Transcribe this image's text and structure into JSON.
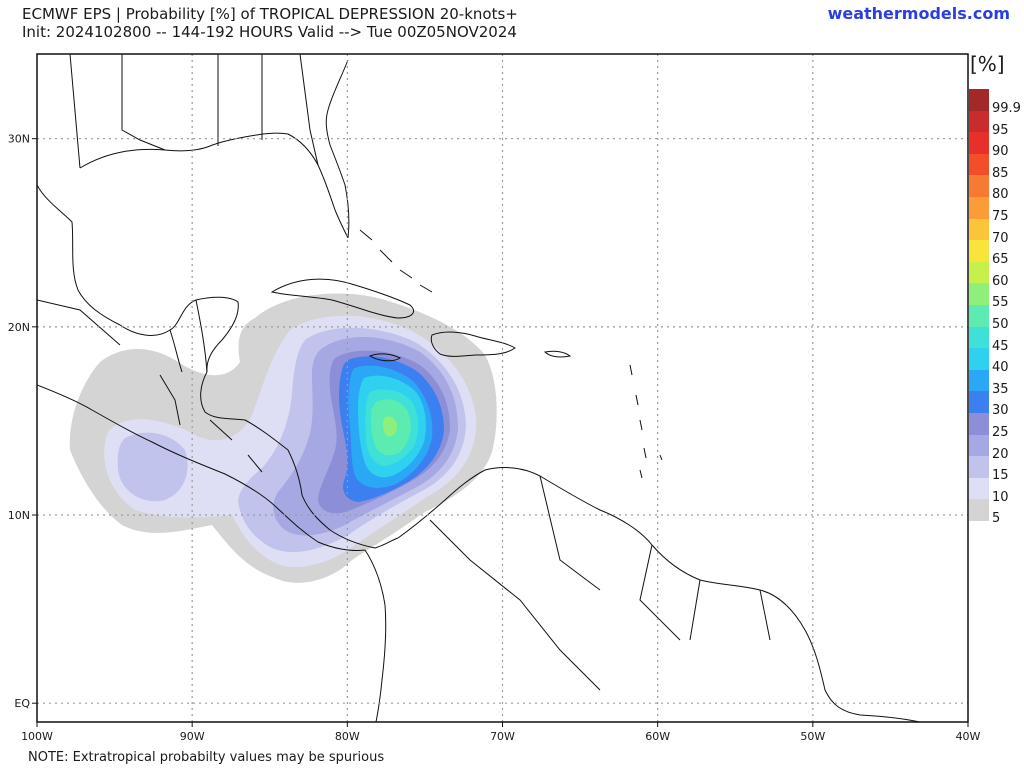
{
  "header": {
    "title": "ECMWF EPS | Probability [%] of TROPICAL DEPRESSION 20-knots+",
    "subtitle": "Init: 2024102800 -- 144-192 HOURS Valid --> Tue 00Z05NOV2024",
    "site": "weathermodels.com"
  },
  "footer": {
    "note": "NOTE: Extratropical probabilty values may be spurious"
  },
  "map": {
    "lon_labels": [
      "100W",
      "90W",
      "80W",
      "70W",
      "60W",
      "50W",
      "40W"
    ],
    "lat_labels": [
      "30N",
      "20N",
      "10N",
      "EQ"
    ],
    "lon_range": [
      -100,
      -40
    ],
    "lat_range": [
      -1,
      34.5
    ]
  },
  "legend": {
    "unit": "[%]",
    "levels": [
      {
        "label": "99.9",
        "color": "#a32828"
      },
      {
        "label": "95",
        "color": "#c92c2c"
      },
      {
        "label": "90",
        "color": "#e8302a"
      },
      {
        "label": "85",
        "color": "#f34d2a"
      },
      {
        "label": "80",
        "color": "#f77a32"
      },
      {
        "label": "75",
        "color": "#fb9c38"
      },
      {
        "label": "70",
        "color": "#fbc43a"
      },
      {
        "label": "65",
        "color": "#f7e53c"
      },
      {
        "label": "60",
        "color": "#c8f04a"
      },
      {
        "label": "55",
        "color": "#8ef07a"
      },
      {
        "label": "50",
        "color": "#5cebb0"
      },
      {
        "label": "45",
        "color": "#3fe0d8"
      },
      {
        "label": "40",
        "color": "#2fd0f0"
      },
      {
        "label": "35",
        "color": "#2aa8f5"
      },
      {
        "label": "30",
        "color": "#3b7ff0"
      },
      {
        "label": "25",
        "color": "#8c8fd8"
      },
      {
        "label": "20",
        "color": "#a5a8e2"
      },
      {
        "label": "15",
        "color": "#c2c3ec"
      },
      {
        "label": "10",
        "color": "#dedff4"
      },
      {
        "label": "5",
        "color": "#d4d4d4"
      }
    ]
  }
}
